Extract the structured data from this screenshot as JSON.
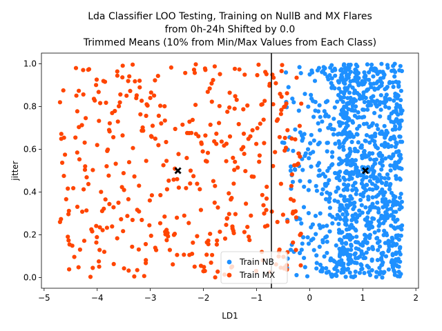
{
  "chart_data": {
    "type": "scatter",
    "title": "Lda Classifier LOO Testing, Training on NullB and MX Flares\nfrom 0h-24h Shifted by 0.0\nTrimmed Means (10% from Min/Max Values from Each Class)",
    "title_lines": [
      "Lda Classifier LOO Testing, Training on NullB and MX Flares",
      "from 0h-24h Shifted by 0.0",
      "Trimmed Means (10% from Min/Max Values from Each Class)"
    ],
    "xlabel": "LD1",
    "ylabel": "jitter",
    "xlim": [
      -5.05,
      2.05
    ],
    "ylim": [
      -0.05,
      1.05
    ],
    "xticks": [
      -5,
      -4,
      -3,
      -2,
      -1,
      0,
      1,
      2
    ],
    "xtick_labels": [
      "−5",
      "−4",
      "−3",
      "−2",
      "−1",
      "0",
      "1",
      "2"
    ],
    "yticks": [
      0.0,
      0.2,
      0.4,
      0.6,
      0.8,
      1.0
    ],
    "ytick_labels": [
      "0.0",
      "0.2",
      "0.4",
      "0.6",
      "0.8",
      "1.0"
    ],
    "grid": false,
    "legend_position": "lower-right-center",
    "series": [
      {
        "name": "Train NB",
        "color": "#1e90ff",
        "point_count_estimate": 1100,
        "x_range": [
          -0.6,
          1.75
        ],
        "y_range": [
          0.0,
          1.0
        ],
        "dense_range": [
          0.55,
          1.75
        ],
        "sample_points": [
          {
            "x": -0.3,
            "y": 0.82
          },
          {
            "x": -0.2,
            "y": 0.58
          },
          {
            "x": -0.15,
            "y": 0.13
          },
          {
            "x": 0.0,
            "y": 0.45
          },
          {
            "x": 0.1,
            "y": 0.92
          },
          {
            "x": 0.2,
            "y": 0.3
          },
          {
            "x": 0.35,
            "y": 0.7
          },
          {
            "x": 0.5,
            "y": 0.05
          },
          {
            "x": 0.8,
            "y": 0.55
          },
          {
            "x": 1.1,
            "y": 0.88
          },
          {
            "x": 1.3,
            "y": 0.22
          },
          {
            "x": 1.6,
            "y": 0.65
          }
        ]
      },
      {
        "name": "Train MX",
        "color": "#ff4500",
        "point_count_estimate": 400,
        "x_range": [
          -4.7,
          -0.15
        ],
        "y_range": [
          0.0,
          1.0
        ],
        "sample_points": [
          {
            "x": -4.7,
            "y": 0.82
          },
          {
            "x": -4.7,
            "y": 0.26
          },
          {
            "x": -4.4,
            "y": 0.98
          },
          {
            "x": -4.0,
            "y": 0.62
          },
          {
            "x": -3.6,
            "y": 0.35
          },
          {
            "x": -3.0,
            "y": 0.84
          },
          {
            "x": -2.5,
            "y": 0.28
          },
          {
            "x": -2.0,
            "y": 0.03
          },
          {
            "x": -1.5,
            "y": 0.66
          },
          {
            "x": -0.9,
            "y": 0.12
          },
          {
            "x": -0.6,
            "y": 0.74
          },
          {
            "x": -0.3,
            "y": 0.36
          }
        ]
      }
    ],
    "decision_boundary": {
      "x": -0.72,
      "color": "#000000"
    },
    "class_means": [
      {
        "series": "Train MX",
        "x": -2.48,
        "y": 0.5,
        "marker": "X",
        "color": "#000000"
      },
      {
        "series": "Train NB",
        "x": 1.05,
        "y": 0.5,
        "marker": "X",
        "color": "#000000"
      }
    ]
  }
}
